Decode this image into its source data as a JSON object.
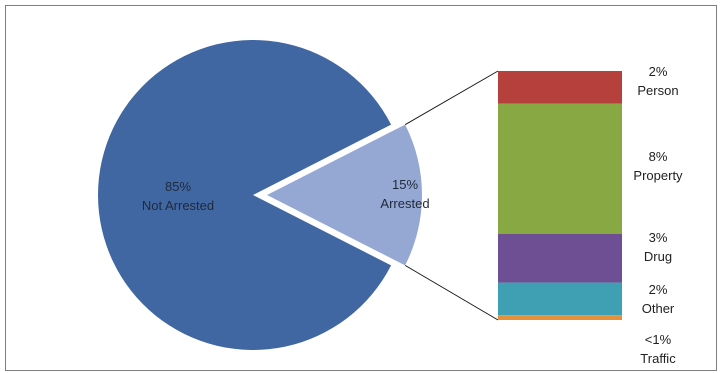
{
  "chart_data": {
    "type": "pie",
    "subtype": "bar-of-pie",
    "slices": [
      {
        "key": "not_arrested",
        "percent_label": "85%",
        "name": "Not Arrested",
        "value": 85,
        "color": "#4167a3"
      },
      {
        "key": "arrested",
        "percent_label": "15%",
        "name": "Arrested",
        "value": 15,
        "color": "#95a7d3"
      }
    ],
    "breakdown": [
      {
        "percent_label": "2%",
        "name": "Person",
        "value": 2,
        "color": "#b6413c"
      },
      {
        "percent_label": "8%",
        "name": "Property",
        "value": 8,
        "color": "#88a843"
      },
      {
        "percent_label": "3%",
        "name": "Drug",
        "value": 3,
        "color": "#6e4f93"
      },
      {
        "percent_label": "2%",
        "name": "Other",
        "value": 2,
        "color": "#3f9fb3"
      },
      {
        "percent_label": "<1%",
        "name": "Traffic",
        "value": 0.3,
        "color": "#e7903c"
      }
    ],
    "title": "",
    "legend": "none"
  }
}
